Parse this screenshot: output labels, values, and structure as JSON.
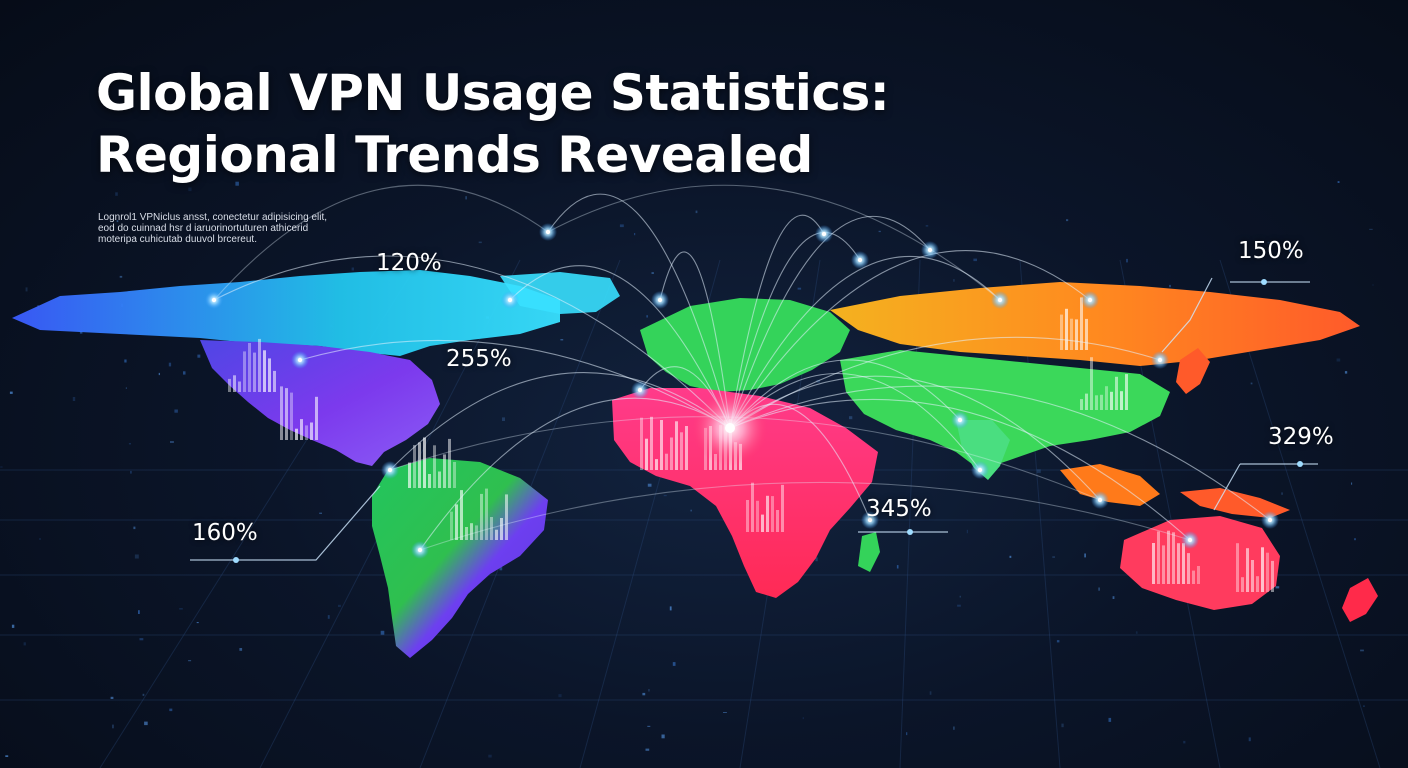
{
  "title": {
    "line1": "Global VPN Usage Statistics:",
    "line2": "Regional Trends Revealed"
  },
  "blurb": {
    "line1": "Lognrol1 VPNiclus ansst, conectetur adipisicing elit,",
    "line2": "eod  do cuinnad hsr d iaruorinortuturen athicerid",
    "line3": "moteripa cuhicutab duuvol brcereut."
  },
  "map_data": {
    "projection": "world map (tilted, equirectangular-like)",
    "theme": "dark navy with glowing connection arcs",
    "regions": [
      {
        "name": "North America",
        "color": "#6a3df0",
        "accent": "#22d3ee"
      },
      {
        "name": "South America",
        "color": "#7b3ff2",
        "accent": "#22c55e"
      },
      {
        "name": "Europe",
        "color": "#34d35a"
      },
      {
        "name": "Africa",
        "color": "#ff3b6b"
      },
      {
        "name": "Asia",
        "color": "#ff8a1f",
        "accent": "#34d35a"
      },
      {
        "name": "Oceania",
        "color": "#ff3b5e"
      }
    ],
    "stat_labels": [
      {
        "id": "north-america",
        "text": "120%"
      },
      {
        "id": "north-atlantic",
        "text": "255%"
      },
      {
        "id": "south-america",
        "text": "160%"
      },
      {
        "id": "africa",
        "text": "345%"
      },
      {
        "id": "asia",
        "text": "150%"
      },
      {
        "id": "southeast-asia",
        "text": "329%"
      }
    ]
  },
  "colors": {
    "background": "#0b1529",
    "glow": "#9fdcff",
    "text": "#ffffff"
  }
}
